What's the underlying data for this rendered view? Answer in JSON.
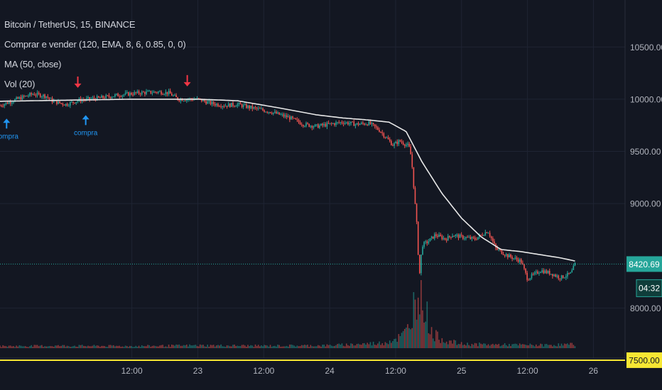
{
  "header": {
    "symbol": "Bitcoin / TetherUS, 15, BINANCE",
    "indicator": "Comprar e vender (120, EMA, 8, 6, 0.85, 0, 0)",
    "ma": "MA (50, close)",
    "volume": "Vol (20)"
  },
  "chart_data": {
    "type": "line",
    "x_tick_labels": [
      {
        "t": 0.5,
        "label": "12:00"
      },
      {
        "t": 1.0,
        "label": "23"
      },
      {
        "t": 1.5,
        "label": "12:00"
      },
      {
        "t": 2.0,
        "label": "24"
      },
      {
        "t": 2.5,
        "label": "12:00"
      },
      {
        "t": 3.0,
        "label": "25"
      },
      {
        "t": 3.5,
        "label": "12:00"
      },
      {
        "t": 4.0,
        "label": "26"
      }
    ],
    "y_tick_labels": [
      "10500.00",
      "10000.00",
      "9500.00",
      "9000.00",
      "8000.00"
    ],
    "y_ticks": [
      10500,
      10000,
      9500,
      9000,
      8000
    ],
    "ylim": [
      7520,
      10950
    ],
    "xlim": [
      -0.5,
      4.24
    ],
    "price_series": [
      [
        -0.5,
        9940
      ],
      [
        -0.35,
        10010
      ],
      [
        -0.25,
        10050
      ],
      [
        -0.15,
        10030
      ],
      [
        -0.1,
        9980
      ],
      [
        0.0,
        9950
      ],
      [
        0.1,
        9990
      ],
      [
        0.25,
        10010
      ],
      [
        0.4,
        10040
      ],
      [
        0.55,
        10060
      ],
      [
        0.7,
        10070
      ],
      [
        0.78,
        10060
      ],
      [
        0.85,
        10000
      ],
      [
        1.0,
        10000
      ],
      [
        1.1,
        9960
      ],
      [
        1.2,
        9940
      ],
      [
        1.3,
        9950
      ],
      [
        1.4,
        9920
      ],
      [
        1.55,
        9880
      ],
      [
        1.7,
        9820
      ],
      [
        1.8,
        9760
      ],
      [
        1.9,
        9740
      ],
      [
        2.0,
        9760
      ],
      [
        2.1,
        9780
      ],
      [
        2.2,
        9760
      ],
      [
        2.3,
        9770
      ],
      [
        2.38,
        9700
      ],
      [
        2.48,
        9560
      ],
      [
        2.53,
        9600
      ],
      [
        2.6,
        9550
      ],
      [
        2.62,
        9440
      ],
      [
        2.66,
        8800
      ],
      [
        2.68,
        8300
      ],
      [
        2.7,
        8600
      ],
      [
        2.75,
        8640
      ],
      [
        2.8,
        8700
      ],
      [
        2.88,
        8660
      ],
      [
        2.93,
        8700
      ],
      [
        3.0,
        8680
      ],
      [
        3.1,
        8660
      ],
      [
        3.2,
        8740
      ],
      [
        3.26,
        8570
      ],
      [
        3.35,
        8500
      ],
      [
        3.45,
        8450
      ],
      [
        3.5,
        8280
      ],
      [
        3.6,
        8360
      ],
      [
        3.68,
        8330
      ],
      [
        3.75,
        8290
      ],
      [
        3.83,
        8330
      ],
      [
        3.86,
        8420
      ]
    ],
    "ma_series": [
      [
        -0.5,
        9980
      ],
      [
        0.0,
        9990
      ],
      [
        0.5,
        10000
      ],
      [
        1.0,
        10000
      ],
      [
        1.3,
        9985
      ],
      [
        1.6,
        9920
      ],
      [
        1.9,
        9850
      ],
      [
        2.1,
        9820
      ],
      [
        2.3,
        9800
      ],
      [
        2.45,
        9780
      ],
      [
        2.58,
        9690
      ],
      [
        2.7,
        9400
      ],
      [
        2.85,
        9100
      ],
      [
        3.0,
        8860
      ],
      [
        3.15,
        8680
      ],
      [
        3.3,
        8560
      ],
      [
        3.45,
        8540
      ],
      [
        3.6,
        8510
      ],
      [
        3.75,
        8480
      ],
      [
        3.86,
        8450
      ]
    ],
    "volume_series": [
      [
        -0.5,
        0.6
      ],
      [
        0.0,
        0.7
      ],
      [
        0.5,
        0.6
      ],
      [
        1.0,
        0.8
      ],
      [
        1.5,
        0.7
      ],
      [
        2.0,
        0.8
      ],
      [
        2.4,
        1.5
      ],
      [
        2.55,
        3.5
      ],
      [
        2.6,
        6.0
      ],
      [
        2.65,
        15.0
      ],
      [
        2.68,
        20.0
      ],
      [
        2.72,
        12.0
      ],
      [
        2.78,
        4.0
      ],
      [
        2.9,
        2.0
      ],
      [
        3.0,
        1.2
      ],
      [
        3.3,
        1.0
      ],
      [
        3.6,
        0.9
      ],
      [
        3.86,
        1.1
      ]
    ],
    "current_price": 8420.69,
    "current_price_label": "8420.69",
    "countdown_label": "04:32",
    "horizontal_line": 7500,
    "horizontal_line_label": "7500.00",
    "signals": [
      {
        "type": "compra",
        "t": -0.45,
        "label": "compra"
      },
      {
        "type": "compra",
        "t": 0.15,
        "label": "compra"
      },
      {
        "type": "venda",
        "t": 0.09,
        "label": ""
      },
      {
        "type": "venda",
        "t": 0.92,
        "label": ""
      }
    ],
    "grid": true,
    "colors": {
      "background": "#131722",
      "grid": "#1f2433",
      "up": "#26a69a",
      "down": "#ef5350",
      "ma": "#e8e8e8",
      "price_line": "#26a69a",
      "hline": "#f7e733",
      "buy": "#2196f3",
      "sell": "#f23645",
      "axis_text": "#b2b5be"
    }
  }
}
